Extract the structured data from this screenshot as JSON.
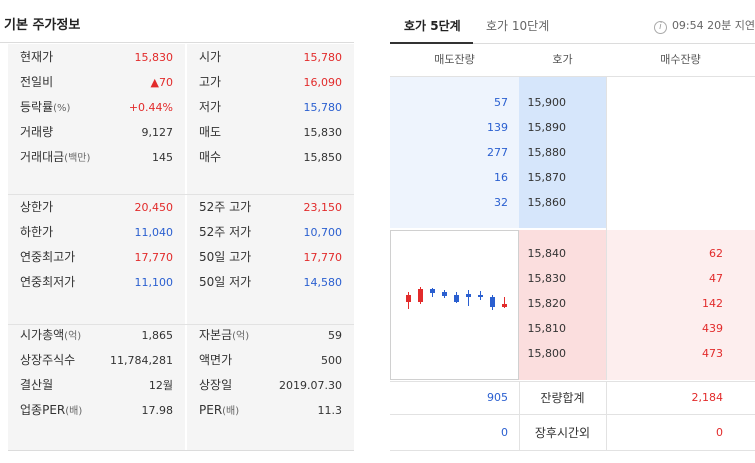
{
  "left": {
    "title": "기본 주가정보",
    "sections": [
      {
        "rows": [
          {
            "label": "현재가",
            "value": "15,830",
            "value_color": "red",
            "label2": "시가",
            "value2": "15,780",
            "value2_color": "red"
          },
          {
            "label": "전일비",
            "value": "▲70",
            "value_color": "red",
            "label2": "고가",
            "value2": "16,090",
            "value2_color": "red"
          },
          {
            "label": "등락률",
            "unit": "(%)",
            "value": "+0.44%",
            "value_color": "red",
            "label2": "저가",
            "value2": "15,780",
            "value2_color": "blue"
          },
          {
            "label": "거래량",
            "value": "9,127",
            "value_color": "dark",
            "label2": "매도",
            "value2": "15,830",
            "value2_color": "dark"
          },
          {
            "label": "거래대금",
            "unit": "(백만)",
            "value": "145",
            "value_color": "dark",
            "label2": "매수",
            "value2": "15,850",
            "value2_color": "dark"
          }
        ]
      },
      {
        "rows": [
          {
            "label": "상한가",
            "value": "20,450",
            "value_color": "red",
            "label2": "52주 고가",
            "value2": "23,150",
            "value2_color": "red"
          },
          {
            "label": "하한가",
            "value": "11,040",
            "value_color": "blue",
            "label2": "52주 저가",
            "value2": "10,700",
            "value2_color": "blue"
          },
          {
            "label": "연중최고가",
            "value": "17,770",
            "value_color": "red",
            "label2": "50일 고가",
            "value2": "17,770",
            "value2_color": "red"
          },
          {
            "label": "연중최저가",
            "value": "11,100",
            "value_color": "blue",
            "label2": "50일 저가",
            "value2": "14,580",
            "value2_color": "blue"
          }
        ]
      },
      {
        "rows": [
          {
            "label": "시가총액",
            "unit": "(억)",
            "value": "1,865",
            "value_color": "dark",
            "label2": "자본금",
            "unit2": "(억)",
            "value2": "59",
            "value2_color": "dark"
          },
          {
            "label": "상장주식수",
            "value": "11,784,281",
            "value_color": "dark",
            "label2": "액면가",
            "value2": "500",
            "value2_color": "dark"
          },
          {
            "label": "결산월",
            "value": "12월",
            "value_color": "dark",
            "label2": "상장일",
            "value2": "2019.07.30",
            "value2_color": "dark"
          },
          {
            "label": "업종PER",
            "unit": "(배)",
            "value": "17.98",
            "value_color": "dark",
            "label2": "PER",
            "unit2": "(배)",
            "value2": "11.3",
            "value2_color": "dark"
          }
        ]
      }
    ]
  },
  "right": {
    "tabs": [
      {
        "label": "호가 5단계",
        "active": true
      },
      {
        "label": "호가 10단계",
        "active": false
      }
    ],
    "delay_text": "09:54 20분 지연",
    "headers": [
      "매도잔량",
      "호가",
      "매수잔량"
    ],
    "asks": [
      {
        "qty": "57",
        "price": "15,900"
      },
      {
        "qty": "139",
        "price": "15,890"
      },
      {
        "qty": "277",
        "price": "15,880"
      },
      {
        "qty": "16",
        "price": "15,870"
      },
      {
        "qty": "32",
        "price": "15,860"
      }
    ],
    "bids": [
      {
        "price": "15,840",
        "qty": "62"
      },
      {
        "price": "15,830",
        "qty": "47"
      },
      {
        "price": "15,820",
        "qty": "142"
      },
      {
        "price": "15,810",
        "qty": "439"
      },
      {
        "price": "15,800",
        "qty": "473"
      }
    ],
    "summary": [
      {
        "ask": "905",
        "label": "잔량합계",
        "bid": "2,184"
      },
      {
        "ask": "0",
        "label": "장후시간외",
        "bid": "0"
      }
    ],
    "colors": {
      "up": "#e22b2b",
      "down": "#2a5fd0"
    }
  }
}
